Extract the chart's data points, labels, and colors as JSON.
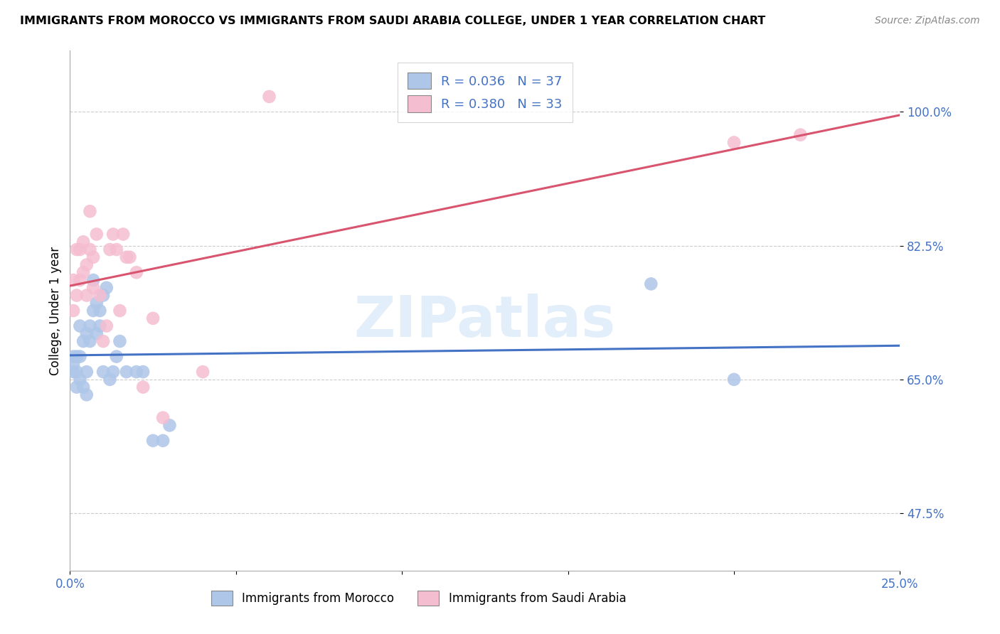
{
  "title": "IMMIGRANTS FROM MOROCCO VS IMMIGRANTS FROM SAUDI ARABIA COLLEGE, UNDER 1 YEAR CORRELATION CHART",
  "source": "Source: ZipAtlas.com",
  "ylabel_label": "College, Under 1 year",
  "xlim": [
    0.0,
    0.25
  ],
  "ylim": [
    0.4,
    1.08
  ],
  "legend_r1": "R = 0.036",
  "legend_n1": "N = 37",
  "legend_r2": "R = 0.380",
  "legend_n2": "N = 33",
  "morocco_color": "#aec6e8",
  "saudi_color": "#f5bdd0",
  "morocco_line_color": "#4472c4",
  "saudi_line_color": "#d9546e",
  "watermark": "ZIPatlas",
  "blue_color": "#4472c4",
  "pink_color": "#d9546e",
  "ytick_vals": [
    0.475,
    0.65,
    0.825,
    1.0
  ],
  "ytick_labels": [
    "47.5%",
    "65.0%",
    "82.5%",
    "100.0%"
  ],
  "morocco_x": [
    0.001,
    0.001,
    0.001,
    0.002,
    0.002,
    0.002,
    0.003,
    0.003,
    0.003,
    0.004,
    0.004,
    0.005,
    0.005,
    0.005,
    0.006,
    0.006,
    0.007,
    0.007,
    0.008,
    0.008,
    0.009,
    0.009,
    0.01,
    0.01,
    0.011,
    0.012,
    0.013,
    0.014,
    0.015,
    0.017,
    0.02,
    0.022,
    0.025,
    0.028,
    0.03,
    0.175,
    0.2
  ],
  "morocco_y": [
    0.66,
    0.67,
    0.68,
    0.64,
    0.66,
    0.68,
    0.65,
    0.68,
    0.72,
    0.64,
    0.7,
    0.63,
    0.66,
    0.71,
    0.7,
    0.72,
    0.74,
    0.78,
    0.71,
    0.75,
    0.72,
    0.74,
    0.66,
    0.76,
    0.77,
    0.65,
    0.66,
    0.68,
    0.7,
    0.66,
    0.66,
    0.66,
    0.57,
    0.57,
    0.59,
    0.775,
    0.65
  ],
  "saudi_x": [
    0.001,
    0.001,
    0.002,
    0.002,
    0.003,
    0.003,
    0.004,
    0.004,
    0.005,
    0.005,
    0.006,
    0.006,
    0.007,
    0.007,
    0.008,
    0.009,
    0.01,
    0.011,
    0.012,
    0.013,
    0.014,
    0.015,
    0.016,
    0.017,
    0.018,
    0.02,
    0.022,
    0.025,
    0.028,
    0.04,
    0.06,
    0.2,
    0.22
  ],
  "saudi_y": [
    0.74,
    0.78,
    0.76,
    0.82,
    0.82,
    0.78,
    0.79,
    0.83,
    0.8,
    0.76,
    0.82,
    0.87,
    0.77,
    0.81,
    0.84,
    0.76,
    0.7,
    0.72,
    0.82,
    0.84,
    0.82,
    0.74,
    0.84,
    0.81,
    0.81,
    0.79,
    0.64,
    0.73,
    0.6,
    0.66,
    1.02,
    0.96,
    0.97
  ]
}
